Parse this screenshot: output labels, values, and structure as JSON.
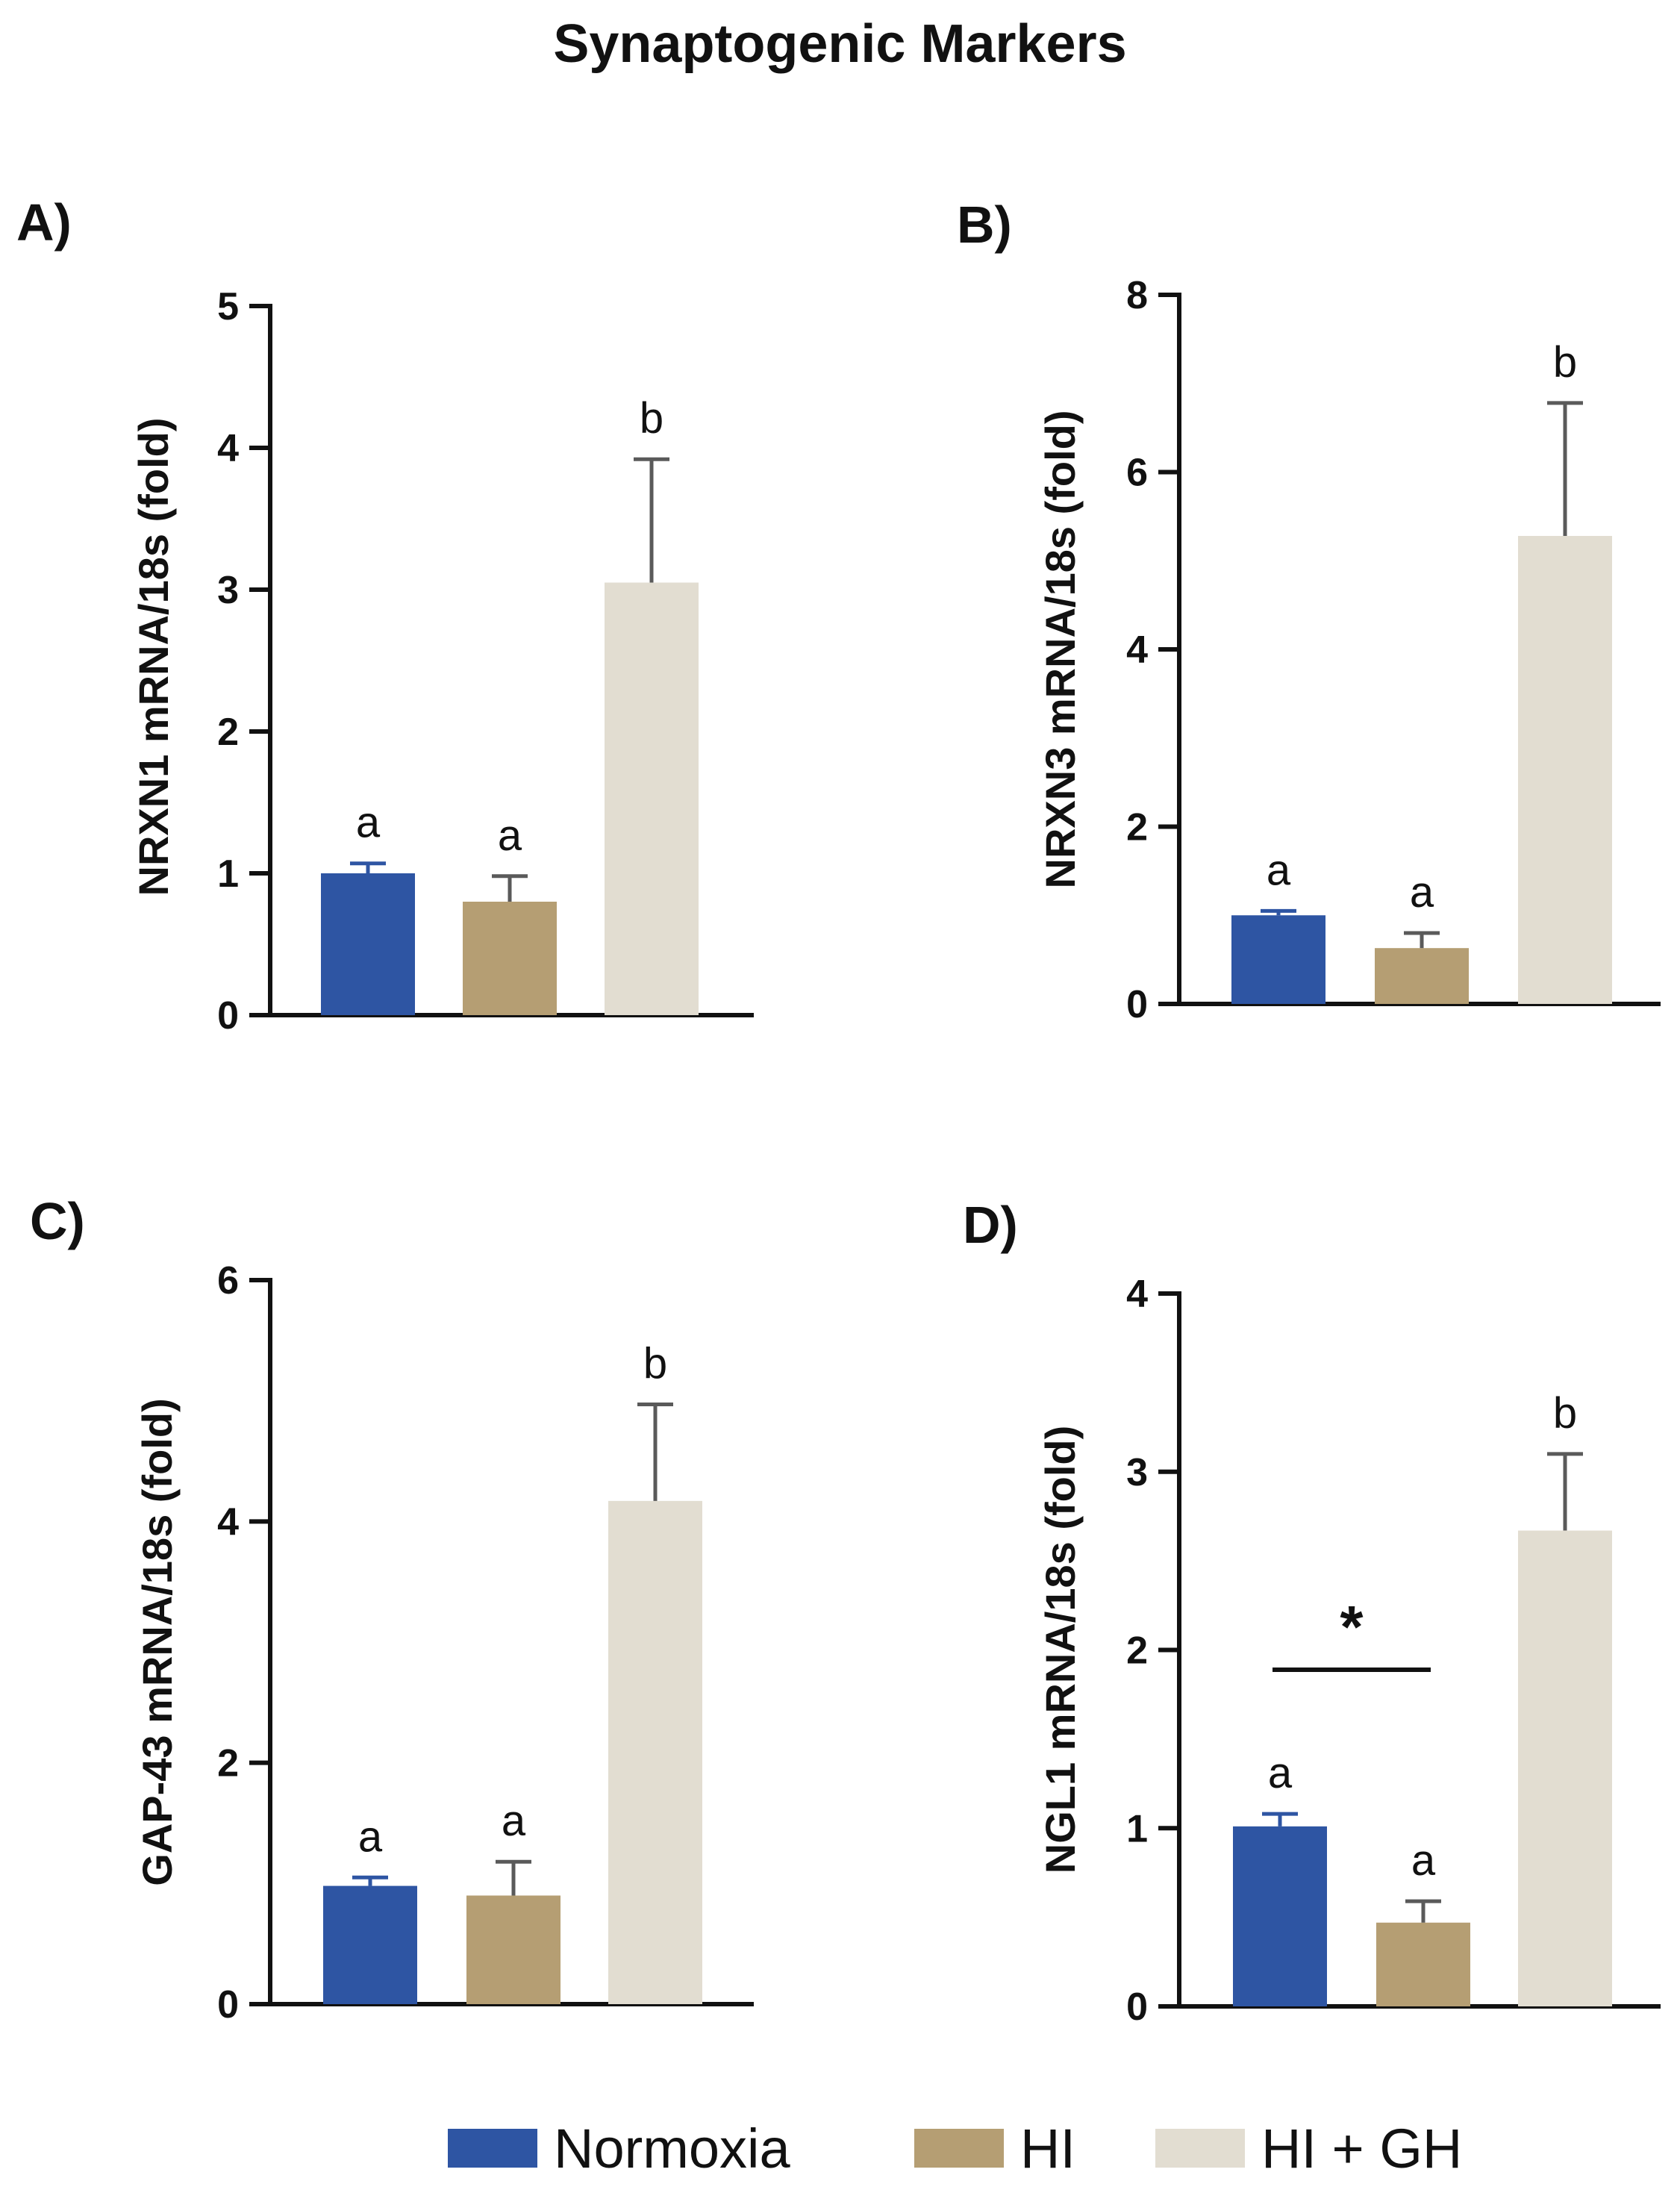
{
  "figure_title": "Synaptogenic Markers",
  "colors": {
    "normoxia": "#2E55A3",
    "hi": "#B59E73",
    "hi_gh": "#E2DDD1",
    "axis": "#111111",
    "error_bar": "#5a5a5a"
  },
  "legend": [
    {
      "label": "Normoxia",
      "color": "#2E55A3"
    },
    {
      "label": "HI",
      "color": "#B59E73"
    },
    {
      "label": "HI + GH",
      "color": "#E2DDD1"
    }
  ],
  "chart_data": [
    {
      "type": "bar",
      "panel": "A)",
      "ylabel": "NRXN1 mRNA/18s (fold)",
      "ylim": [
        0,
        5
      ],
      "yticks": [
        "0",
        "1",
        "2",
        "3",
        "4",
        "5"
      ],
      "categories": [
        "Normoxia",
        "HI",
        "HI + GH"
      ],
      "values": [
        1.0,
        0.8,
        3.05
      ],
      "errors": [
        0.07,
        0.18,
        0.87
      ],
      "sig_letters": [
        "a",
        "a",
        "b"
      ]
    },
    {
      "type": "bar",
      "panel": "B)",
      "ylabel": "NRXN3 mRNA/18s (fold)",
      "ylim": [
        0,
        8
      ],
      "yticks": [
        "0",
        "2",
        "4",
        "6",
        "8"
      ],
      "categories": [
        "Normoxia",
        "HI",
        "HI + GH"
      ],
      "values": [
        1.0,
        0.63,
        5.28
      ],
      "errors": [
        0.05,
        0.17,
        1.5
      ],
      "sig_letters": [
        "a",
        "a",
        "b"
      ]
    },
    {
      "type": "bar",
      "panel": "C)",
      "ylabel": "GAP-43 mRNA/18s (fold)",
      "ylim": [
        0,
        6
      ],
      "yticks": [
        "0",
        "2",
        "4",
        "6"
      ],
      "categories": [
        "Normoxia",
        "HI",
        "HI + GH"
      ],
      "values": [
        0.98,
        0.9,
        4.17
      ],
      "errors": [
        0.07,
        0.28,
        0.8
      ],
      "sig_letters": [
        "a",
        "a",
        "b"
      ]
    },
    {
      "type": "bar",
      "panel": "D)",
      "ylabel": "NGL1 mRNA/18s (fold)",
      "ylim": [
        0,
        4
      ],
      "yticks": [
        "0",
        "1",
        "2",
        "3",
        "4"
      ],
      "categories": [
        "Normoxia",
        "HI",
        "HI + GH"
      ],
      "values": [
        1.01,
        0.47,
        2.67
      ],
      "errors": [
        0.07,
        0.12,
        0.43
      ],
      "sig_letters": [
        "a",
        "a",
        "b"
      ],
      "comparison": {
        "between": [
          "Normoxia",
          "HI"
        ],
        "label": "*"
      }
    }
  ]
}
